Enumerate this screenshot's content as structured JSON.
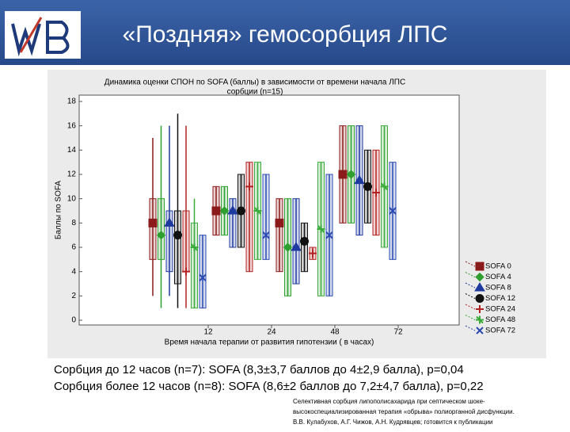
{
  "slide": {
    "title": "«Поздняя» гемосорбция ЛПС",
    "lines": [
      "Сорбция до 12 часов (n=7): SOFA (8,3±3,7 баллов до 4±2,9 балла), p=0,04",
      "Сорбция более 12 часов (n=8): SOFA (8,6±2 баллов до 7,2±4,7 балла), p=0,22"
    ],
    "footnote": [
      "Селективная сорбция липополисахарида при септическом шоке-",
      "высокоспециализированная терапия «обрыва» полиорганной дисфункции.",
      "В.В. Кулабухов, А.Г. Чижов, А.Н. Кудрявцев; готовится к публикации"
    ]
  },
  "chart_data": {
    "type": "box",
    "title": [
      "Динамика оценки СПОН по SOFA (баллы) в зависимости от времени начала ЛПС",
      "сорбции (n=15)"
    ],
    "y_label": "Баллы по SOFA",
    "x_label": "Время начала терапии от развития гипотензии ( в часах)",
    "xticks": [
      12,
      24,
      48,
      72
    ],
    "ylim": [
      0,
      18
    ],
    "yticks": [
      0,
      2,
      4,
      6,
      8,
      10,
      12,
      14,
      16,
      18
    ],
    "grid": false,
    "legend": "right",
    "series": [
      {
        "name": "SOFA 0",
        "color": "#8b1a1a",
        "marker": "square",
        "median": [
          8,
          9,
          8,
          12
        ],
        "q1": [
          5,
          7,
          4,
          8
        ],
        "q3": [
          10,
          11,
          10,
          16
        ],
        "min": [
          2,
          7,
          4,
          8
        ],
        "max": [
          15,
          11,
          10,
          16
        ]
      },
      {
        "name": "SOFA 4",
        "color": "#2e9e2e",
        "marker": "diamond",
        "median": [
          7,
          9,
          6,
          12
        ],
        "q1": [
          5,
          7,
          2,
          8
        ],
        "q3": [
          10,
          11,
          10,
          16
        ],
        "min": [
          1,
          7,
          2,
          8
        ],
        "max": [
          16,
          11,
          10,
          16
        ]
      },
      {
        "name": "SOFA 8",
        "color": "#1f3a9e",
        "marker": "triangle",
        "median": [
          8,
          9,
          6,
          11.5
        ],
        "q1": [
          4,
          6,
          3,
          7
        ],
        "q3": [
          9,
          10,
          10,
          16
        ],
        "min": [
          2,
          6,
          3,
          7
        ],
        "max": [
          16,
          10,
          10,
          16
        ]
      },
      {
        "name": "SOFA 12",
        "color": "#111111",
        "marker": "circle",
        "median": [
          7,
          9,
          6.5,
          11
        ],
        "q1": [
          3,
          6,
          4,
          8
        ],
        "q3": [
          9,
          12,
          8,
          14
        ],
        "min": [
          1,
          6,
          4,
          8
        ],
        "max": [
          17,
          12,
          8,
          14
        ]
      },
      {
        "name": "SOFA 24",
        "color": "#b22222",
        "marker": "plus",
        "median": [
          4,
          11,
          5.5,
          10.5
        ],
        "q1": [
          4,
          4,
          5,
          7
        ],
        "q3": [
          9,
          13,
          6,
          14
        ],
        "min": [
          1,
          4,
          5,
          7
        ],
        "max": [
          16,
          13,
          6,
          14
        ]
      },
      {
        "name": "SOFA 48",
        "color": "#3aaa3a",
        "marker": "cross",
        "median": [
          6,
          9,
          7.5,
          11
        ],
        "q1": [
          1,
          5,
          2,
          6
        ],
        "q3": [
          8,
          13,
          13,
          16
        ],
        "min": [
          1,
          5,
          2,
          6
        ],
        "max": [
          10,
          13,
          13,
          16
        ]
      },
      {
        "name": "SOFA 72",
        "color": "#2a4ab0",
        "marker": "x",
        "median": [
          3.5,
          7,
          7,
          9
        ],
        "q1": [
          1,
          5,
          2,
          5
        ],
        "q3": [
          7,
          12,
          12,
          13
        ],
        "min": [
          1,
          5,
          2,
          5
        ],
        "max": [
          7,
          12,
          12,
          13
        ]
      }
    ]
  }
}
